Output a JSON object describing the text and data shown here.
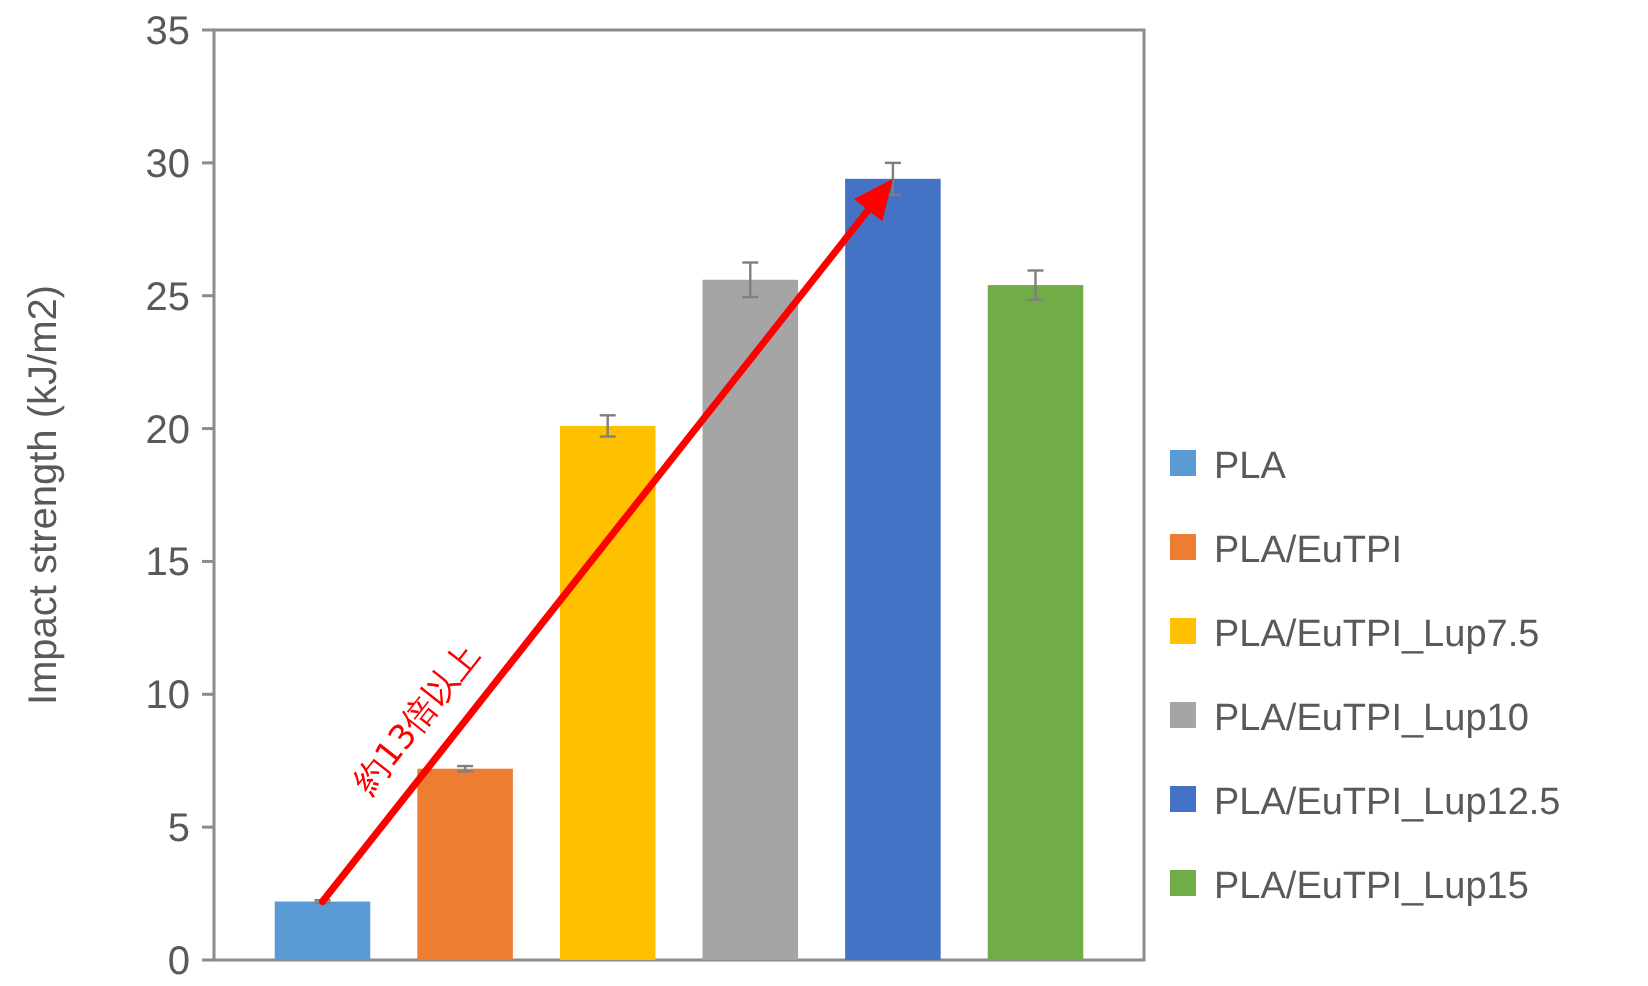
{
  "chart_data": {
    "type": "bar",
    "ylabel": "Impact strength (kJ/m2)",
    "stacked": true,
    "ylim": [
      0,
      35
    ],
    "yticks": [
      0,
      5,
      10,
      15,
      20,
      25,
      30,
      35
    ],
    "grid": false,
    "legend": "right",
    "categories": [
      null,
      null,
      null,
      null,
      null,
      null
    ],
    "series": [
      {
        "name": "PLA",
        "color": "#5b9bd5",
        "values": [
          2.2,
          null,
          null,
          null,
          null,
          null
        ],
        "errors": [
          0.05,
          null,
          null,
          null,
          null,
          null
        ]
      },
      {
        "name": "PLA/EuTPI",
        "color": "#ed7d31",
        "values": [
          null,
          7.2,
          null,
          null,
          null,
          null
        ],
        "errors": [
          null,
          0.1,
          null,
          null,
          null,
          null
        ]
      },
      {
        "name": "PLA/EuTPI_Lup7.5",
        "color": "#ffc000",
        "values": [
          null,
          null,
          20.1,
          null,
          null,
          null
        ],
        "errors": [
          null,
          null,
          0.4,
          null,
          null,
          null
        ]
      },
      {
        "name": "PLA/EuTPI_Lup10",
        "color": "#a5a5a5",
        "values": [
          null,
          null,
          null,
          25.6,
          null,
          null
        ],
        "errors": [
          null,
          null,
          null,
          0.65,
          null,
          null
        ]
      },
      {
        "name": "PLA/EuTPI_Lup12.5",
        "color": "#4472c4",
        "values": [
          null,
          null,
          null,
          null,
          29.4,
          null
        ],
        "errors": [
          null,
          null,
          null,
          null,
          0.6,
          null
        ]
      },
      {
        "name": "PLA/EuTPI_Lup15",
        "color": "#70ad47",
        "values": [
          null,
          null,
          null,
          null,
          null,
          25.4
        ],
        "errors": [
          null,
          null,
          null,
          null,
          null,
          0.55
        ]
      }
    ],
    "annotations": [
      "約13倍以上"
    ]
  }
}
